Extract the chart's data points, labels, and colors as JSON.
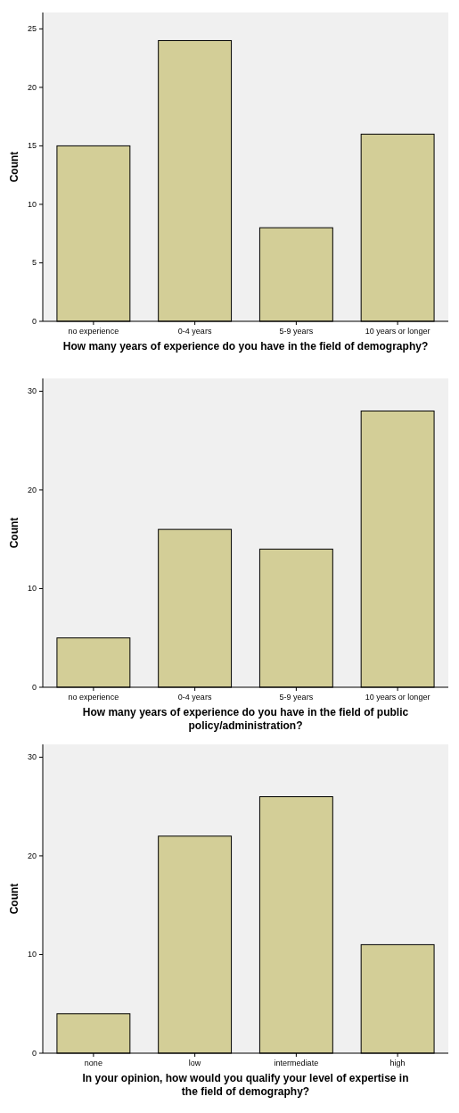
{
  "chart_data": [
    {
      "type": "bar",
      "xlabel": "How many years of experience do you have in the field of demography?",
      "ylabel": "Count",
      "categories": [
        "no experience",
        "0-4 years",
        "5-9 years",
        "10 years or longer"
      ],
      "values": [
        15,
        24,
        8,
        16
      ],
      "color": "#d3ce97",
      "ylim": [
        0,
        26.4
      ],
      "yticks": [
        0,
        5,
        10,
        15,
        20,
        25
      ],
      "grid": false
    },
    {
      "type": "bar",
      "xlabel": "How many years of experience do you have in the field of public policy/administration?",
      "ylabel": "Count",
      "categories": [
        "no experience",
        "0-4 years",
        "5-9 years",
        "10 years or longer"
      ],
      "values": [
        5,
        16,
        14,
        28
      ],
      "color": "#d3ce97",
      "ylim": [
        0,
        31.3
      ],
      "yticks": [
        0,
        10,
        20,
        30
      ],
      "grid": false
    },
    {
      "type": "bar",
      "xlabel": "In your opinion, how would you qualify your level of expertise in the field of demography?",
      "ylabel": "Count",
      "categories": [
        "none",
        "low",
        "intermediate",
        "high"
      ],
      "values": [
        4,
        22,
        26,
        11
      ],
      "color": "#d3ce97",
      "ylim": [
        0,
        31.3
      ],
      "yticks": [
        0,
        10,
        20,
        30
      ],
      "grid": false
    }
  ]
}
